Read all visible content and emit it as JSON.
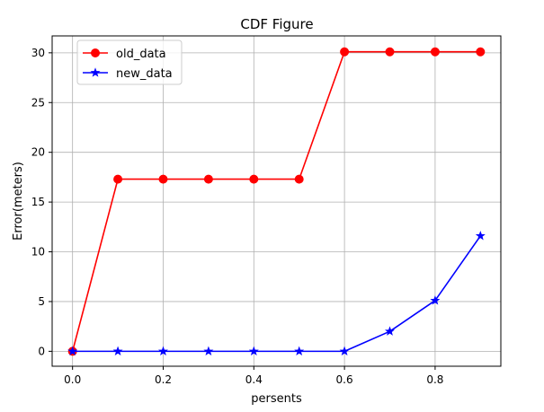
{
  "chart_data": {
    "type": "line",
    "title": "CDF Figure",
    "xlabel": "persents",
    "ylabel": "Error(meters)",
    "x": [
      0.0,
      0.1,
      0.2,
      0.3,
      0.4,
      0.5,
      0.6,
      0.7,
      0.8,
      0.9
    ],
    "xlim": [
      -0.045,
      0.945
    ],
    "ylim": [
      -1.5,
      31.7
    ],
    "xticks": [
      0.0,
      0.2,
      0.4,
      0.6,
      0.8
    ],
    "xtick_labels": [
      "0.0",
      "0.2",
      "0.4",
      "0.6",
      "0.8"
    ],
    "yticks": [
      0,
      5,
      10,
      15,
      20,
      25,
      30
    ],
    "ytick_labels": [
      "0",
      "5",
      "10",
      "15",
      "20",
      "25",
      "30"
    ],
    "grid": true,
    "legend_position": "top-left",
    "series": [
      {
        "name": "old_data",
        "color": "#ff0000",
        "marker": "circle",
        "values": [
          0,
          17.3,
          17.3,
          17.3,
          17.3,
          17.3,
          30.1,
          30.1,
          30.1,
          30.1
        ]
      },
      {
        "name": "new_data",
        "color": "#0000ff",
        "marker": "star",
        "values": [
          0,
          0,
          0,
          0,
          0,
          0,
          0,
          2.0,
          5.1,
          11.6
        ]
      }
    ]
  }
}
